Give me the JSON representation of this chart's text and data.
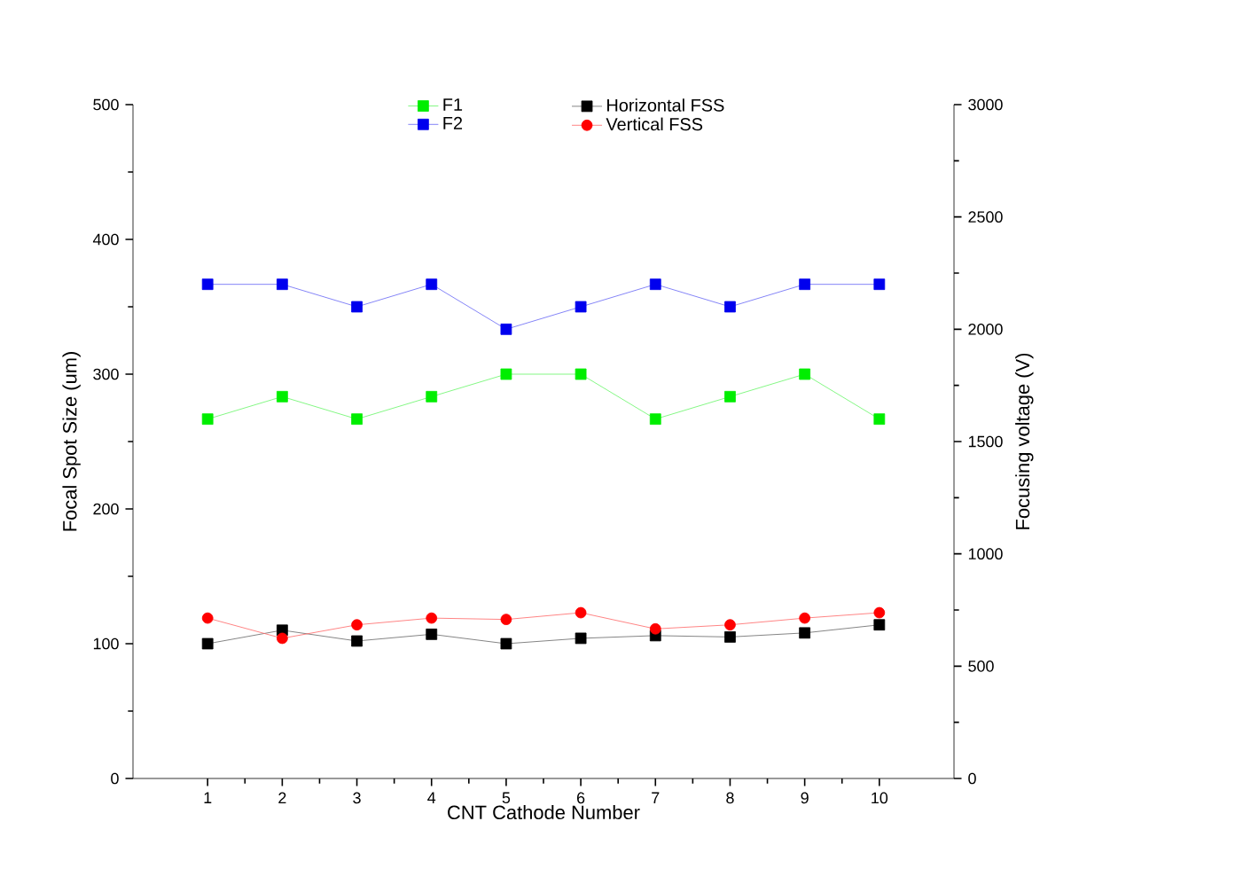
{
  "chart_data": {
    "type": "line",
    "xlabel": "CNT Cathode Number",
    "ylabel": "Focal Spot Size (um)",
    "y2label": "Focusing voltage (V)",
    "x": [
      1,
      2,
      3,
      4,
      5,
      6,
      7,
      8,
      9,
      10
    ],
    "series": [
      {
        "name": "F1",
        "color": "#00ee00",
        "axis": "y2",
        "marker": "square",
        "values": [
          1600,
          1700,
          1600,
          1700,
          1800,
          1800,
          1600,
          1700,
          1800,
          1600
        ]
      },
      {
        "name": "F2",
        "color": "#0000ee",
        "axis": "y2",
        "marker": "square",
        "values": [
          2200,
          2200,
          2100,
          2200,
          2000,
          2100,
          2200,
          2100,
          2200,
          2200
        ]
      },
      {
        "name": "Horizontal FSS",
        "color": "#000000",
        "marker": "square",
        "values": [
          100,
          110,
          102,
          107,
          100,
          104,
          106,
          105,
          108,
          114
        ]
      },
      {
        "name": "Vertical FSS",
        "color": "#ff0000",
        "marker": "circle",
        "values": [
          119,
          104,
          114,
          119,
          118,
          123,
          111,
          114,
          119,
          123
        ]
      }
    ],
    "xlim": [
      0,
      11
    ],
    "xticks": [
      1,
      2,
      3,
      4,
      5,
      6,
      7,
      8,
      9,
      10
    ],
    "ylim": [
      0,
      500
    ],
    "yticks": [
      0,
      100,
      200,
      300,
      400,
      500
    ],
    "y2lim": [
      0,
      3000
    ],
    "y2ticks": [
      0,
      500,
      1000,
      1500,
      2000,
      2500,
      3000
    ],
    "grid": false,
    "legend": "top"
  }
}
